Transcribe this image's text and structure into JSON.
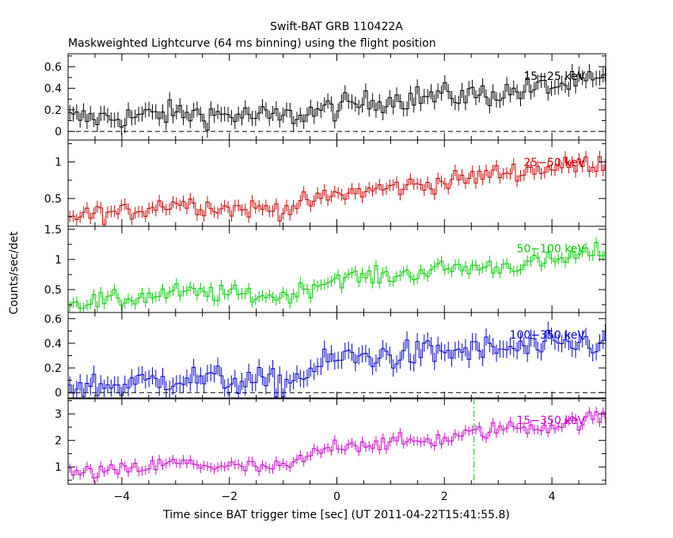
{
  "chart_data": {
    "type": "line",
    "title": "Swift-BAT GRB 110422A",
    "subtitle": "Maskweighted Lightcurve (64 ms binning) using the flight position",
    "xlabel": "Time since BAT trigger time [sec] (UT 2011-04-22T15:41:55.8)",
    "ylabel": "Counts/sec/det",
    "xlim": [
      -5,
      5
    ],
    "x_ticks": [
      -4,
      -2,
      0,
      2,
      4
    ],
    "x_tick_labels": [
      "−4",
      "−2",
      "0",
      "2",
      "4"
    ],
    "vertical_marker": {
      "x": 2.55,
      "color": "#00cc00"
    },
    "panels": [
      {
        "name": "15-25 keV",
        "label": "15−25 keV",
        "color": "#000000",
        "ylim": [
          -0.08,
          0.72
        ],
        "y_ticks": [
          0,
          0.2,
          0.4,
          0.6
        ],
        "y_tick_labels": [
          "0",
          "0.2",
          "0.4",
          "0.6"
        ],
        "zero_line": true,
        "anchors_x": [
          -5,
          -4,
          -3,
          -2,
          -1,
          0,
          1,
          2,
          3,
          4,
          5
        ],
        "anchors_y": [
          0.12,
          0.13,
          0.17,
          0.15,
          0.13,
          0.22,
          0.3,
          0.33,
          0.35,
          0.42,
          0.47
        ],
        "error": 0.07
      },
      {
        "name": "25-50 keV",
        "label": "25−50 keV",
        "color": "#cc0000",
        "ylim": [
          0.12,
          1.3
        ],
        "y_ticks": [
          0.5,
          1
        ],
        "y_tick_labels": [
          "0.5",
          "1"
        ],
        "zero_line": false,
        "anchors_x": [
          -5,
          -4,
          -3,
          -2,
          -1,
          0,
          1,
          2,
          3,
          4,
          5
        ],
        "anchors_y": [
          0.27,
          0.3,
          0.45,
          0.36,
          0.36,
          0.55,
          0.65,
          0.72,
          0.85,
          0.92,
          1.0
        ],
        "error": 0.08
      },
      {
        "name": "50-100 keV",
        "label": "50−100 keV",
        "color": "#00cc00",
        "ylim": [
          0.12,
          1.55
        ],
        "y_ticks": [
          0.5,
          1,
          1.5
        ],
        "y_tick_labels": [
          "0.5",
          "1",
          "1.5"
        ],
        "zero_line": false,
        "anchors_x": [
          -5,
          -4,
          -3,
          -2,
          -1,
          0,
          1,
          2,
          3,
          4,
          5
        ],
        "anchors_y": [
          0.28,
          0.33,
          0.45,
          0.43,
          0.38,
          0.7,
          0.72,
          0.85,
          0.88,
          0.97,
          1.15
        ],
        "error": 0.09
      },
      {
        "name": "100-350 keV",
        "label": "100−350 keV",
        "color": "#0000cc",
        "ylim": [
          -0.05,
          0.65
        ],
        "y_ticks": [
          0,
          0.2,
          0.4,
          0.6
        ],
        "y_tick_labels": [
          "0",
          "0.2",
          "0.4",
          "0.6"
        ],
        "zero_line": true,
        "anchors_x": [
          -5,
          -4,
          -3,
          -2,
          -1,
          0,
          1,
          2,
          3,
          4,
          5
        ],
        "anchors_y": [
          0.05,
          0.06,
          0.12,
          0.1,
          0.07,
          0.28,
          0.3,
          0.33,
          0.35,
          0.37,
          0.42
        ],
        "error": 0.07
      },
      {
        "name": "15-350 keV",
        "label": "15−350 keV",
        "color": "#cc00cc",
        "ylim": [
          0.35,
          3.6
        ],
        "y_ticks": [
          1,
          2,
          3
        ],
        "y_tick_labels": [
          "1",
          "2",
          "3"
        ],
        "zero_line": false,
        "anchors_x": [
          -5,
          -4,
          -3,
          -2,
          -1,
          0,
          1,
          2,
          3,
          4,
          5
        ],
        "anchors_y": [
          0.75,
          0.85,
          1.15,
          1.0,
          0.95,
          1.85,
          1.9,
          2.05,
          2.45,
          2.55,
          2.9
        ],
        "error": 0.18
      }
    ]
  }
}
